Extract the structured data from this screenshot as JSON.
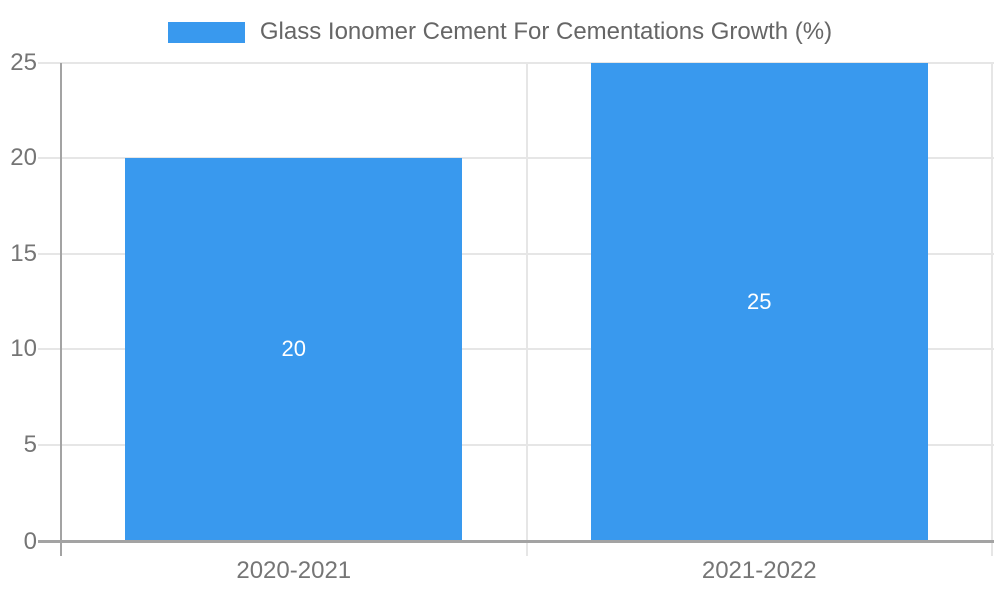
{
  "chart_data": {
    "type": "bar",
    "title": "",
    "legend": {
      "label": "Glass Ionomer Cement For Cementations Growth (%)",
      "position": "top"
    },
    "categories": [
      "2020-2021",
      "2021-2022"
    ],
    "series": [
      {
        "name": "Glass Ionomer Cement For Cementations Growth (%)",
        "values": [
          20,
          25
        ]
      }
    ],
    "bar_value_labels": [
      "20",
      "25"
    ],
    "ylabel": "",
    "xlabel": "",
    "ylim": [
      0,
      25
    ],
    "yticks": [
      0,
      5,
      10,
      15,
      20,
      25
    ],
    "grid": true,
    "legend_position": "top-center",
    "colors": {
      "bar": "#3999EE",
      "grid": "#E6E6E6",
      "axis": "#A3A3A3",
      "tick_text": "#757575",
      "legend_text": "#666666",
      "bar_label": "#FFFFFF",
      "background": "#FFFFFF"
    }
  }
}
